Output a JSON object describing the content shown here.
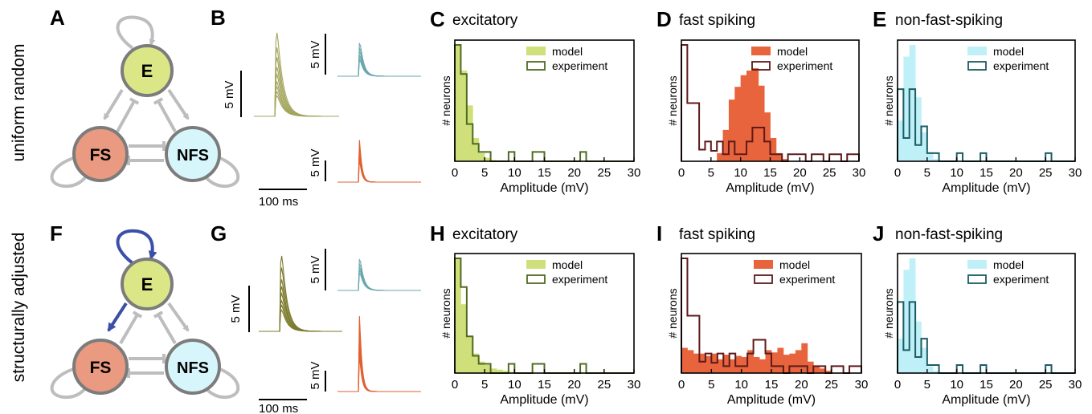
{
  "row_labels": [
    "uniform random",
    "structurally adjusted"
  ],
  "network_panels": [
    {
      "letter": "A",
      "nodes": {
        "E": "E",
        "FS": "FS",
        "NFS": "NFS"
      }
    },
    {
      "letter": "F",
      "nodes": {
        "E": "E",
        "FS": "FS",
        "NFS": "NFS"
      }
    }
  ],
  "trace_panels": [
    {
      "letter": "B",
      "scale_mv": "5 mV",
      "scale_ms": "100 ms"
    },
    {
      "letter": "G",
      "scale_mv": "5 mV",
      "scale_ms": "100 ms"
    }
  ],
  "colors": {
    "excitatory": "#cfe07a",
    "excitatory_edge": "#4f6b22",
    "fs": "#e8643c",
    "fs_edge": "#5e1a1a",
    "nfs": "#bff0f8",
    "nfs_edge": "#1b5c63",
    "e_node": "#dbe787",
    "fs_node": "#ea9a80",
    "nfs_node": "#d6f6fb",
    "adjusted_link": "#3b4fa8"
  },
  "chart_data": [
    {
      "type": "bar",
      "letter": "C",
      "title": "excitatory",
      "xlabel": "Amplitude (mV)",
      "ylabel": "# neurons",
      "xlim": [
        0,
        30
      ],
      "xticks": [
        0,
        5,
        10,
        15,
        20,
        25,
        30
      ],
      "bin_width": 1,
      "ymax": 1,
      "legend": [
        "model",
        "experiment"
      ],
      "legend_position": "top-right",
      "series": [
        {
          "name": "model",
          "style": "filled",
          "color": "excitatory",
          "values": [
            1.0,
            0.78,
            0.48,
            0.2,
            0.07,
            0.03,
            0.01,
            0,
            0,
            0,
            0,
            0,
            0,
            0,
            0,
            0,
            0,
            0,
            0,
            0,
            0,
            0,
            0,
            0,
            0,
            0,
            0,
            0,
            0,
            0
          ]
        },
        {
          "name": "experiment",
          "style": "step",
          "color": "excitatory_edge",
          "values": [
            1.0,
            0.75,
            0.32,
            0.15,
            0.08,
            0.08,
            0,
            0,
            0,
            0.08,
            0,
            0,
            0,
            0.08,
            0.08,
            0,
            0,
            0,
            0,
            0,
            0,
            0.08,
            0,
            0,
            0,
            0,
            0,
            0,
            0,
            0
          ]
        }
      ]
    },
    {
      "type": "bar",
      "letter": "D",
      "title": "fast spiking",
      "xlabel": "Amplitude (mV)",
      "ylabel": "# neurons",
      "xlim": [
        0,
        30
      ],
      "xticks": [
        0,
        5,
        10,
        15,
        20,
        25,
        30
      ],
      "bin_width": 1,
      "ymax": 1,
      "legend": [
        "model",
        "experiment"
      ],
      "legend_position": "top-right",
      "series": [
        {
          "name": "model",
          "style": "filled",
          "color": "fs",
          "values": [
            0,
            0,
            0,
            0,
            0,
            0,
            0.07,
            0.27,
            0.53,
            0.64,
            0.74,
            0.78,
            0.8,
            0.65,
            0.42,
            0.2,
            0.07,
            0.02,
            0,
            0,
            0,
            0,
            0,
            0,
            0,
            0,
            0,
            0,
            0,
            0
          ]
        },
        {
          "name": "experiment",
          "style": "step",
          "color": "fs_edge",
          "values": [
            1.0,
            0.5,
            0.5,
            0.1,
            0.17,
            0.09,
            0.17,
            0.06,
            0.17,
            0.06,
            0.06,
            0.17,
            0.29,
            0.29,
            0.17,
            0.06,
            0.06,
            0,
            0.06,
            0.06,
            0.06,
            0,
            0.06,
            0.06,
            0,
            0.06,
            0.06,
            0,
            0.06,
            0.06
          ]
        }
      ]
    },
    {
      "type": "bar",
      "letter": "E",
      "title": "non-fast-spiking",
      "xlabel": "Amplitude (mV)",
      "ylabel": "# neurons",
      "xlim": [
        0,
        30
      ],
      "xticks": [
        0,
        5,
        10,
        15,
        20,
        25,
        30
      ],
      "bin_width": 1,
      "ymax": 1,
      "legend": [
        "model",
        "experiment"
      ],
      "legend_position": "top-right",
      "series": [
        {
          "name": "model",
          "style": "filled",
          "color": "nfs",
          "values": [
            0.35,
            0.9,
            1.0,
            0.55,
            0.25,
            0.08,
            0.02,
            0,
            0,
            0,
            0,
            0,
            0,
            0,
            0,
            0,
            0,
            0,
            0,
            0,
            0,
            0,
            0,
            0,
            0,
            0,
            0,
            0,
            0,
            0
          ]
        },
        {
          "name": "experiment",
          "style": "step",
          "color": "nfs_edge",
          "values": [
            0.62,
            0.2,
            0.62,
            0.14,
            0.3,
            0.07,
            0.07,
            0,
            0,
            0,
            0.07,
            0,
            0,
            0,
            0.07,
            0,
            0,
            0,
            0,
            0,
            0,
            0,
            0,
            0,
            0,
            0.07,
            0,
            0,
            0,
            0
          ]
        }
      ]
    },
    {
      "type": "bar",
      "letter": "H",
      "title": "excitatory",
      "xlabel": "Amplitude (mV)",
      "ylabel": "# neurons",
      "xlim": [
        0,
        30
      ],
      "xticks": [
        0,
        5,
        10,
        15,
        20,
        25,
        30
      ],
      "bin_width": 1,
      "ymax": 1,
      "legend": [
        "model",
        "experiment"
      ],
      "legend_position": "top-right",
      "series": [
        {
          "name": "model",
          "style": "filled",
          "color": "excitatory",
          "values": [
            1.0,
            0.6,
            0.32,
            0.17,
            0.1,
            0.07,
            0.04,
            0.03,
            0.02,
            0.01,
            0,
            0,
            0,
            0,
            0,
            0,
            0,
            0,
            0,
            0,
            0,
            0,
            0,
            0,
            0,
            0,
            0,
            0,
            0,
            0
          ]
        },
        {
          "name": "experiment",
          "style": "step",
          "color": "excitatory_edge",
          "values": [
            1.0,
            0.75,
            0.32,
            0.15,
            0.08,
            0.08,
            0,
            0,
            0,
            0.08,
            0,
            0,
            0,
            0.08,
            0.08,
            0,
            0,
            0,
            0,
            0,
            0,
            0.08,
            0,
            0,
            0,
            0,
            0,
            0,
            0,
            0
          ]
        }
      ]
    },
    {
      "type": "bar",
      "letter": "I",
      "title": "fast spiking",
      "xlabel": "Amplitude (mV)",
      "ylabel": "# neurons",
      "xlim": [
        0,
        30
      ],
      "xticks": [
        0,
        5,
        10,
        15,
        20,
        25,
        30
      ],
      "bin_width": 1,
      "ymax": 1,
      "legend": [
        "model",
        "experiment"
      ],
      "legend_position": "top-right",
      "series": [
        {
          "name": "model",
          "style": "filled",
          "color": "fs",
          "values": [
            0.22,
            0.2,
            0.17,
            0.17,
            0.15,
            0.17,
            0.12,
            0.16,
            0.12,
            0.15,
            0.14,
            0.2,
            0.14,
            0.12,
            0.2,
            0.18,
            0.22,
            0.16,
            0.17,
            0.2,
            0.26,
            0.1,
            0.06,
            0.04,
            0.02,
            0,
            0,
            0,
            0,
            0
          ]
        },
        {
          "name": "experiment",
          "style": "step",
          "color": "fs_edge",
          "values": [
            1.0,
            0.5,
            0.5,
            0.1,
            0.17,
            0.09,
            0.17,
            0.06,
            0.17,
            0.06,
            0.06,
            0.17,
            0.29,
            0.29,
            0.17,
            0.06,
            0.06,
            0,
            0.06,
            0.06,
            0.06,
            0,
            0.06,
            0.06,
            0,
            0.06,
            0.06,
            0,
            0.06,
            0.06
          ]
        }
      ]
    },
    {
      "type": "bar",
      "letter": "J",
      "title": "non-fast-spiking",
      "xlabel": "Amplitude (mV)",
      "ylabel": "# neurons",
      "xlim": [
        0,
        30
      ],
      "xticks": [
        0,
        5,
        10,
        15,
        20,
        25,
        30
      ],
      "bin_width": 1,
      "ymax": 1,
      "legend": [
        "model",
        "experiment"
      ],
      "legend_position": "top-right",
      "series": [
        {
          "name": "model",
          "style": "filled",
          "color": "nfs",
          "values": [
            0.3,
            0.9,
            1.0,
            0.45,
            0.22,
            0.06,
            0.02,
            0,
            0,
            0,
            0,
            0,
            0,
            0,
            0,
            0,
            0,
            0,
            0,
            0,
            0,
            0,
            0,
            0,
            0,
            0,
            0,
            0,
            0,
            0
          ]
        },
        {
          "name": "experiment",
          "style": "step",
          "color": "nfs_edge",
          "values": [
            0.62,
            0.2,
            0.62,
            0.14,
            0.3,
            0.07,
            0.07,
            0,
            0,
            0,
            0.07,
            0,
            0,
            0,
            0.07,
            0,
            0,
            0,
            0,
            0,
            0,
            0,
            0,
            0,
            0,
            0.07,
            0,
            0,
            0,
            0
          ]
        }
      ]
    }
  ]
}
